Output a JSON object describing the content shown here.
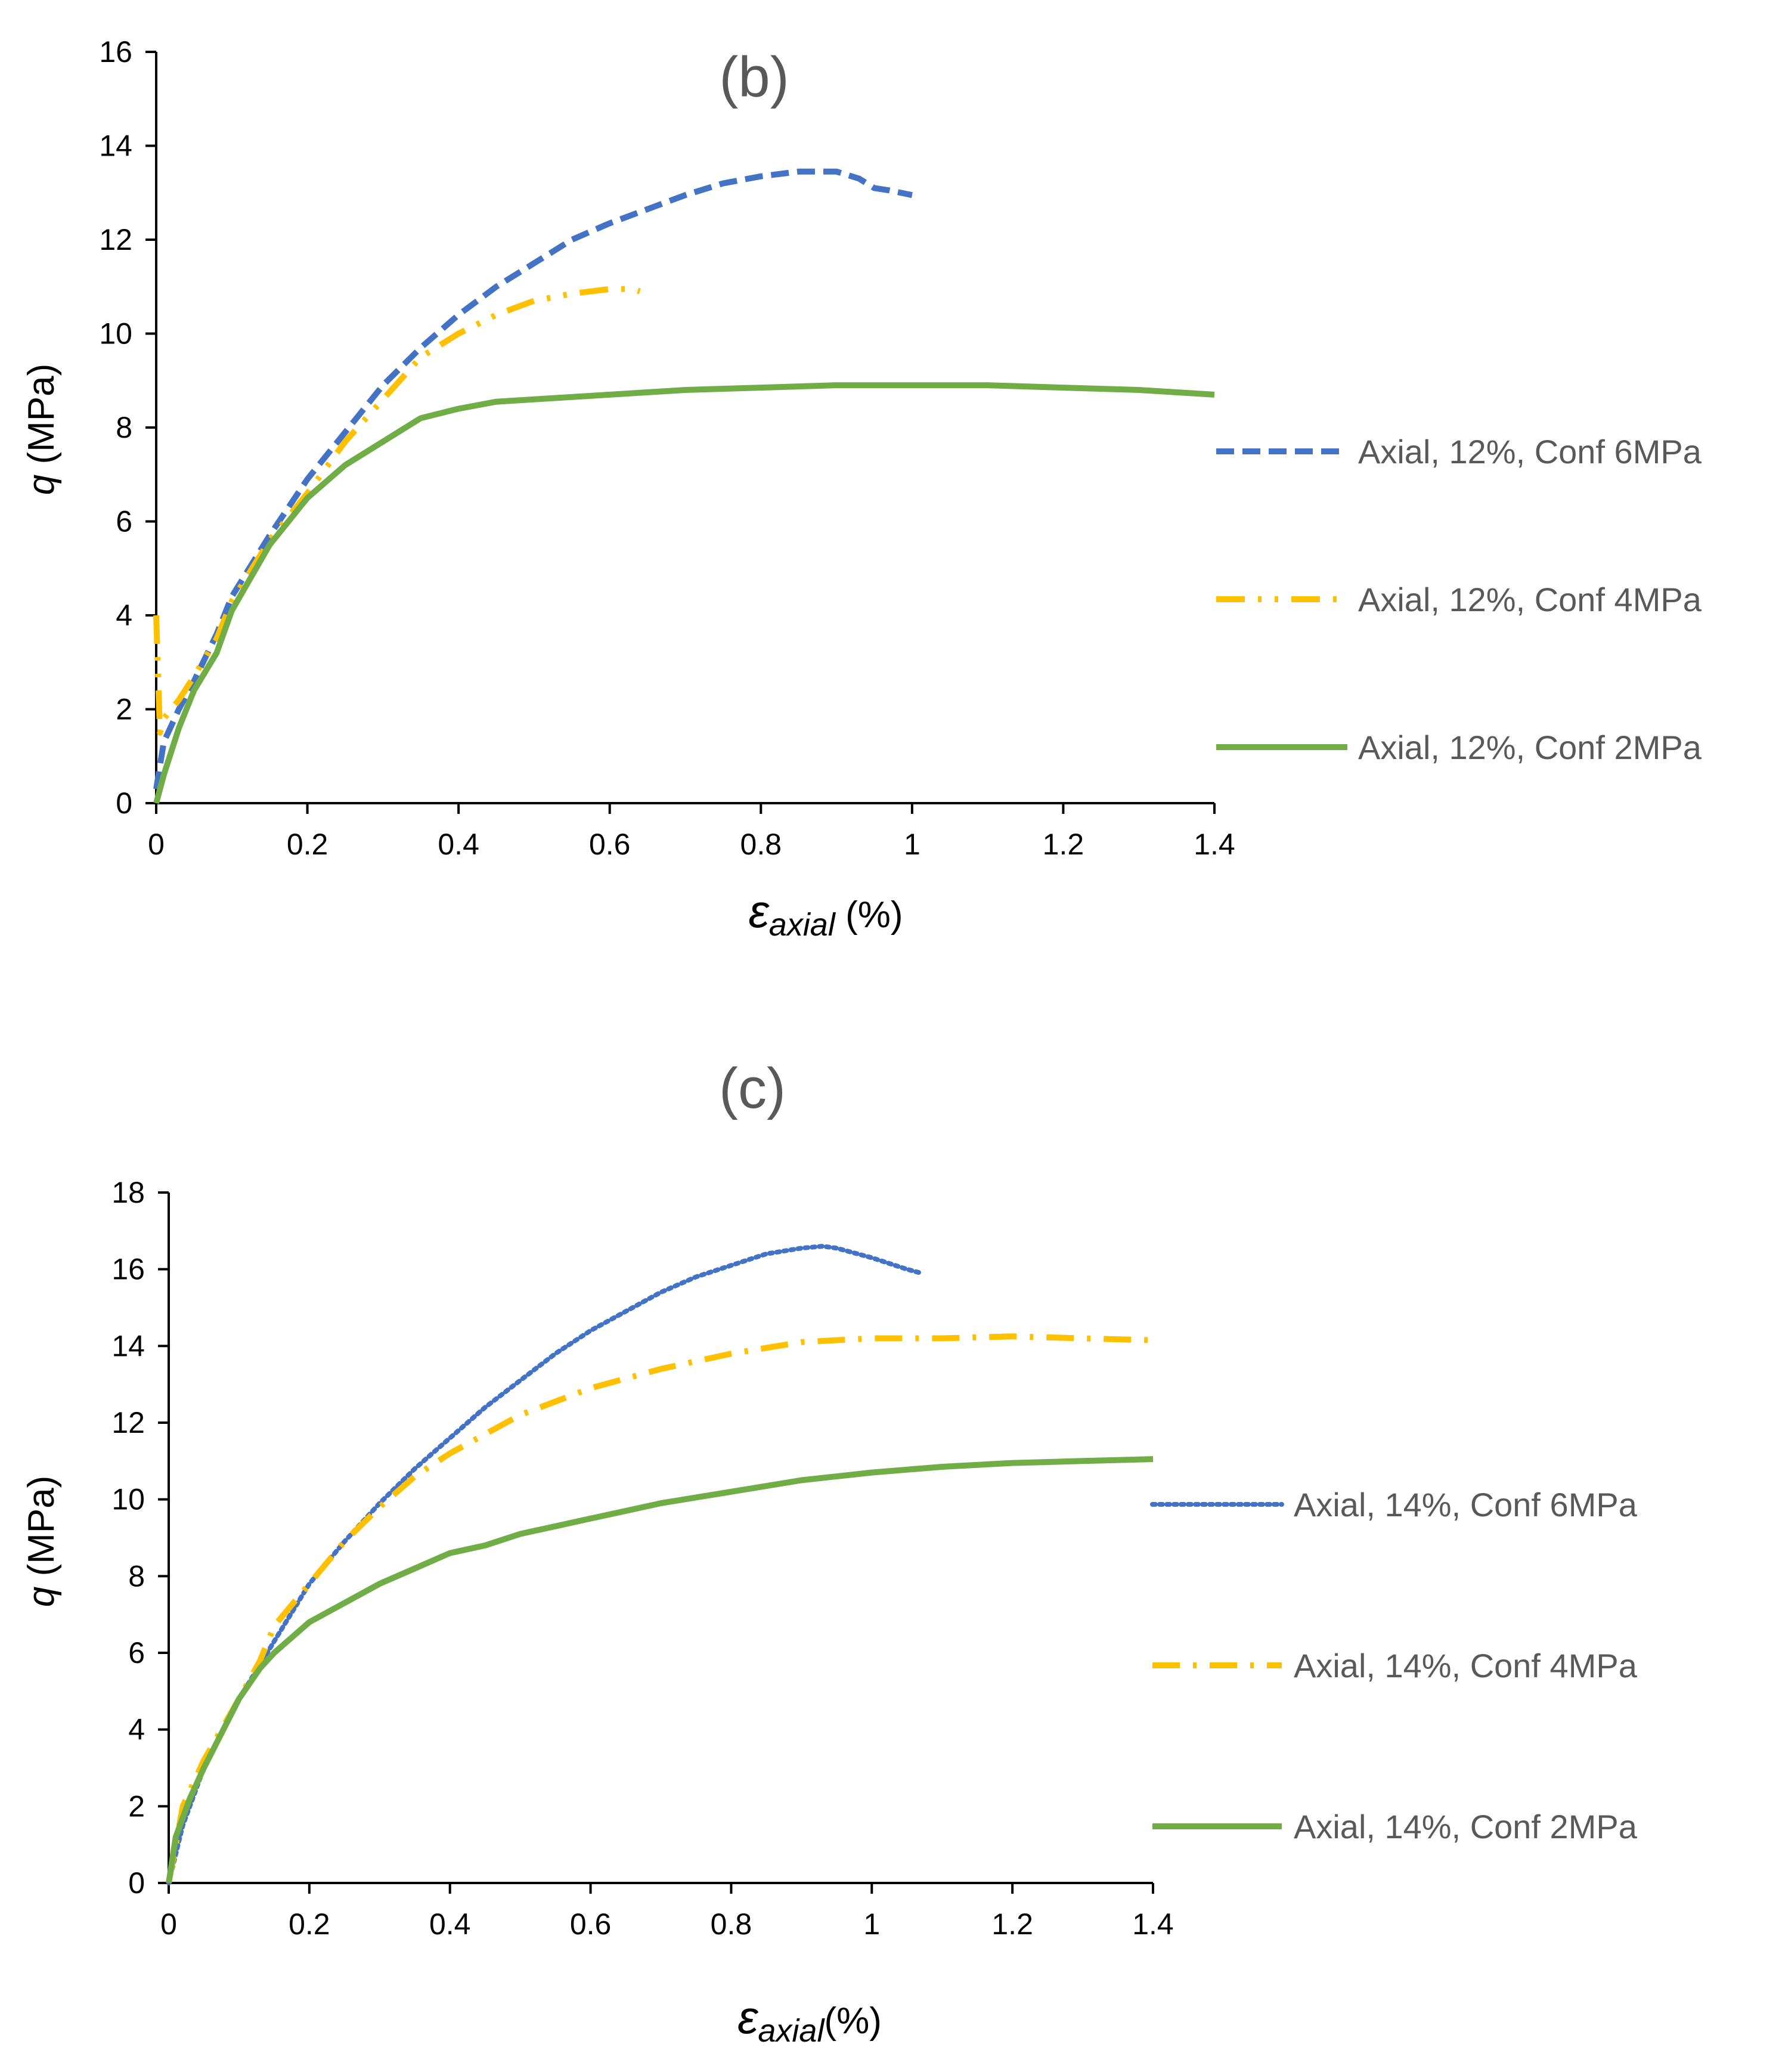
{
  "chart_data": [
    {
      "type": "line",
      "title": "(b)",
      "xlabel": {
        "symbol": "ε",
        "subscript": "axial",
        "unit": " (%)"
      },
      "ylabel": {
        "symbol": "q",
        "unit": " (MPa)"
      },
      "xlim": [
        0,
        1.4
      ],
      "ylim": [
        0,
        16
      ],
      "xticks": [
        "0",
        "0.2",
        "0.4",
        "0.6",
        "0.8",
        "1",
        "1.2",
        "1.4"
      ],
      "yticks": [
        "0",
        "2",
        "4",
        "6",
        "8",
        "10",
        "12",
        "14",
        "16"
      ],
      "xtick_values": [
        0,
        0.2,
        0.4,
        0.6,
        0.8,
        1.0,
        1.2,
        1.4
      ],
      "ytick_values": [
        0,
        2,
        4,
        6,
        8,
        10,
        12,
        14,
        16
      ],
      "grid": false,
      "legend_position": "right",
      "series": [
        {
          "name": "Axial, 12%, Conf 6MPa",
          "color": "#4472C4",
          "dash": "dash",
          "x": [
            0,
            0.01,
            0.03,
            0.05,
            0.08,
            0.1,
            0.15,
            0.2,
            0.25,
            0.3,
            0.35,
            0.4,
            0.45,
            0.5,
            0.55,
            0.6,
            0.65,
            0.7,
            0.75,
            0.8,
            0.85,
            0.88,
            0.9,
            0.93,
            0.95,
            0.97,
            1.0
          ],
          "y": [
            0.3,
            1.3,
            2.0,
            2.6,
            3.6,
            4.4,
            5.7,
            6.9,
            7.9,
            8.9,
            9.7,
            10.4,
            11.0,
            11.5,
            12.0,
            12.35,
            12.65,
            12.95,
            13.2,
            13.35,
            13.45,
            13.45,
            13.45,
            13.3,
            13.1,
            13.05,
            12.95
          ]
        },
        {
          "name": "Axial, 12%, Conf 4MPa",
          "color": "#FFC000",
          "dash": "dashdotdot",
          "x": [
            0,
            0.005,
            0.01,
            0.03,
            0.05,
            0.08,
            0.1,
            0.15,
            0.2,
            0.25,
            0.3,
            0.35,
            0.4,
            0.45,
            0.5,
            0.55,
            0.6,
            0.63,
            0.64
          ],
          "y": [
            4.0,
            1.5,
            1.8,
            2.2,
            2.7,
            3.5,
            4.3,
            5.6,
            6.6,
            7.7,
            8.6,
            9.5,
            10.0,
            10.4,
            10.7,
            10.85,
            10.95,
            10.95,
            10.9
          ]
        },
        {
          "name": "Axial, 12%, Conf 2MPa",
          "color": "#70AD47",
          "dash": "solid",
          "x": [
            0,
            0.01,
            0.03,
            0.05,
            0.08,
            0.1,
            0.15,
            0.2,
            0.25,
            0.3,
            0.33,
            0.35,
            0.4,
            0.45,
            0.5,
            0.6,
            0.7,
            0.8,
            0.9,
            1.0,
            1.1,
            1.2,
            1.3,
            1.4
          ],
          "y": [
            0,
            0.6,
            1.6,
            2.4,
            3.2,
            4.1,
            5.5,
            6.5,
            7.2,
            7.7,
            8.0,
            8.2,
            8.4,
            8.55,
            8.6,
            8.7,
            8.8,
            8.85,
            8.9,
            8.9,
            8.9,
            8.85,
            8.8,
            8.7
          ]
        }
      ]
    },
    {
      "type": "line",
      "title": "(c)",
      "xlabel": {
        "symbol": "ε",
        "subscript": "axial",
        "unit": "(%)"
      },
      "ylabel": {
        "symbol": "q",
        "unit": " (MPa)"
      },
      "xlim": [
        0,
        1.4
      ],
      "ylim": [
        0,
        18
      ],
      "xticks": [
        "0",
        "0.2",
        "0.4",
        "0.6",
        "0.8",
        "1",
        "1.2",
        "1.4"
      ],
      "yticks": [
        "0",
        "2",
        "4",
        "6",
        "8",
        "10",
        "12",
        "14",
        "16",
        "18"
      ],
      "xtick_values": [
        0,
        0.2,
        0.4,
        0.6,
        0.8,
        1.0,
        1.2,
        1.4
      ],
      "ytick_values": [
        0,
        2,
        4,
        6,
        8,
        10,
        12,
        14,
        16,
        18
      ],
      "grid": false,
      "legend_position": "right",
      "series": [
        {
          "name": "Axial, 14%, Conf 6MPa",
          "color": "#4472C4",
          "dash": "dot",
          "x": [
            0,
            0.02,
            0.05,
            0.1,
            0.15,
            0.2,
            0.25,
            0.3,
            0.35,
            0.4,
            0.45,
            0.5,
            0.55,
            0.6,
            0.65,
            0.7,
            0.75,
            0.8,
            0.85,
            0.9,
            0.93,
            0.95,
            1.0,
            1.05,
            1.07
          ],
          "y": [
            0,
            1.5,
            3.0,
            4.8,
            6.3,
            7.8,
            8.9,
            9.9,
            10.8,
            11.6,
            12.4,
            13.1,
            13.8,
            14.4,
            14.9,
            15.4,
            15.8,
            16.1,
            16.4,
            16.55,
            16.6,
            16.55,
            16.3,
            16.0,
            15.9
          ]
        },
        {
          "name": "Axial, 14%, Conf 4MPa",
          "color": "#FFC000",
          "dash": "dashdot",
          "x": [
            0,
            0.02,
            0.05,
            0.1,
            0.13,
            0.15,
            0.2,
            0.25,
            0.3,
            0.35,
            0.4,
            0.45,
            0.5,
            0.6,
            0.7,
            0.8,
            0.9,
            1.0,
            1.1,
            1.2,
            1.3,
            1.4
          ],
          "y": [
            0,
            2.0,
            3.2,
            4.8,
            5.8,
            6.7,
            7.8,
            8.9,
            9.8,
            10.6,
            11.2,
            11.7,
            12.2,
            12.9,
            13.4,
            13.8,
            14.1,
            14.2,
            14.2,
            14.25,
            14.2,
            14.15
          ]
        },
        {
          "name": "Axial, 14%, Conf 2MPa",
          "color": "#70AD47",
          "dash": "solid",
          "x": [
            0,
            0.01,
            0.03,
            0.05,
            0.1,
            0.13,
            0.15,
            0.2,
            0.25,
            0.3,
            0.35,
            0.4,
            0.45,
            0.5,
            0.55,
            0.6,
            0.65,
            0.7,
            0.8,
            0.9,
            1.0,
            1.1,
            1.2,
            1.3,
            1.4
          ],
          "y": [
            0,
            1.2,
            2.2,
            3.0,
            4.8,
            5.6,
            6.0,
            6.8,
            7.3,
            7.8,
            8.2,
            8.6,
            8.8,
            9.1,
            9.3,
            9.5,
            9.7,
            9.9,
            10.2,
            10.5,
            10.7,
            10.85,
            10.95,
            11.0,
            11.05
          ]
        }
      ]
    }
  ]
}
